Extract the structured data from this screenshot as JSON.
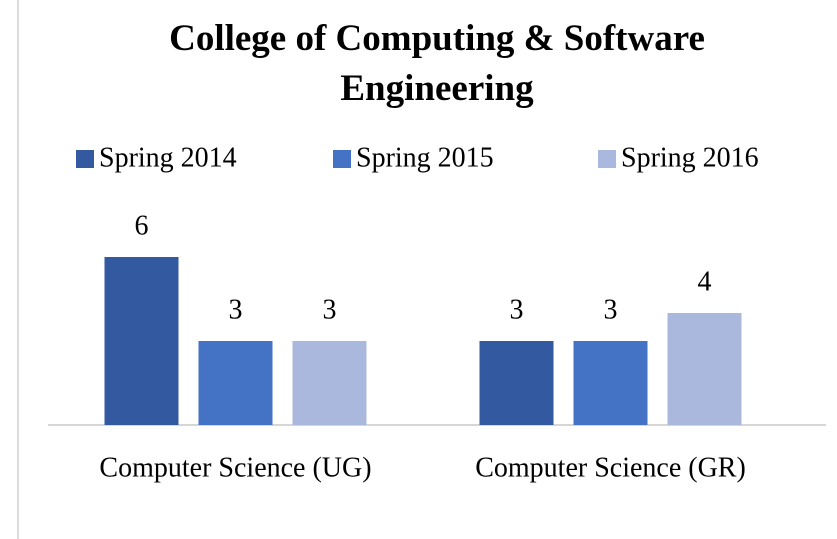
{
  "chart_data": {
    "type": "bar",
    "title": "College of Computing & Software Engineering",
    "categories": [
      "Computer Science (UG)",
      "Computer Science (GR)"
    ],
    "series": [
      {
        "name": "Spring 2014",
        "color": "#335aa0",
        "values": [
          6,
          3
        ]
      },
      {
        "name": "Spring 2015",
        "color": "#4472c4",
        "values": [
          3,
          3
        ]
      },
      {
        "name": "Spring 2016",
        "color": "#a9b8dc",
        "values": [
          3,
          4
        ]
      }
    ],
    "ylim": [
      0,
      6
    ],
    "legend": "top"
  }
}
